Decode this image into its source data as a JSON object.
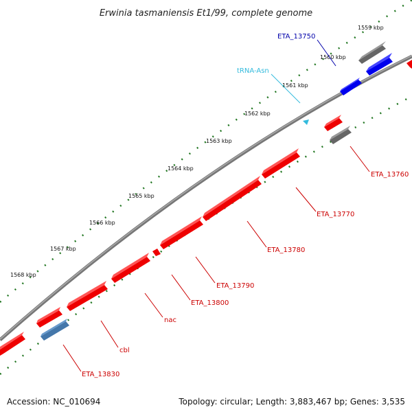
{
  "title": "Erwinia tasmaniensis Et1/99, complete genome",
  "footer": {
    "accession": "Accession: NC_010694",
    "summary": "Topology: circular; Length: 3,883,467 bp; Genes: 3,535"
  },
  "ticks": [
    "1559 kbp",
    "1560 kbp",
    "1561 kbp",
    "1562 kbp",
    "1563 kbp",
    "1564 kbp",
    "1565 kbp",
    "1566 kbp",
    "1567 kbp",
    "1568 kbp"
  ],
  "labels": [
    "ETA_13750",
    "tRNA-Asn",
    "ETA_13760",
    "ETA_13770",
    "ETA_13780",
    "ETA_13790",
    "ETA_13800",
    "nac",
    "cbl",
    "ETA_13830"
  ],
  "colors": {
    "cds": "#ee0000",
    "trna": "#33bbdd",
    "gray": "#666666",
    "blue": "#0000ee",
    "steel": "#4477aa",
    "tick": "#227722",
    "backbone": "#888888"
  }
}
